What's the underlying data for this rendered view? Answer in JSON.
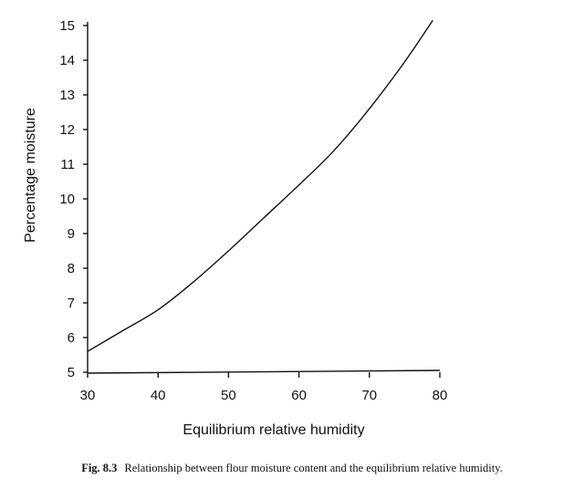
{
  "chart_data": {
    "type": "line",
    "xlabel": "Equilibrium relative humidity",
    "ylabel": "Percentage moisture",
    "xlim": [
      30,
      80
    ],
    "ylim": [
      5,
      15
    ],
    "xticks": [
      30,
      40,
      50,
      60,
      70,
      80
    ],
    "yticks": [
      5,
      6,
      7,
      8,
      9,
      10,
      11,
      12,
      13,
      14,
      15
    ],
    "grid": false,
    "series": [
      {
        "x": [
          30,
          35,
          40,
          45,
          50,
          55,
          60,
          65,
          70,
          75,
          79
        ],
        "y": [
          5.6,
          6.2,
          6.8,
          7.6,
          8.5,
          9.45,
          10.4,
          11.4,
          12.6,
          13.95,
          15.15
        ]
      }
    ]
  },
  "caption": {
    "label": "Fig. 8.3",
    "text": "Relationship between flour moisture content and the equilibrium relative humidity."
  }
}
